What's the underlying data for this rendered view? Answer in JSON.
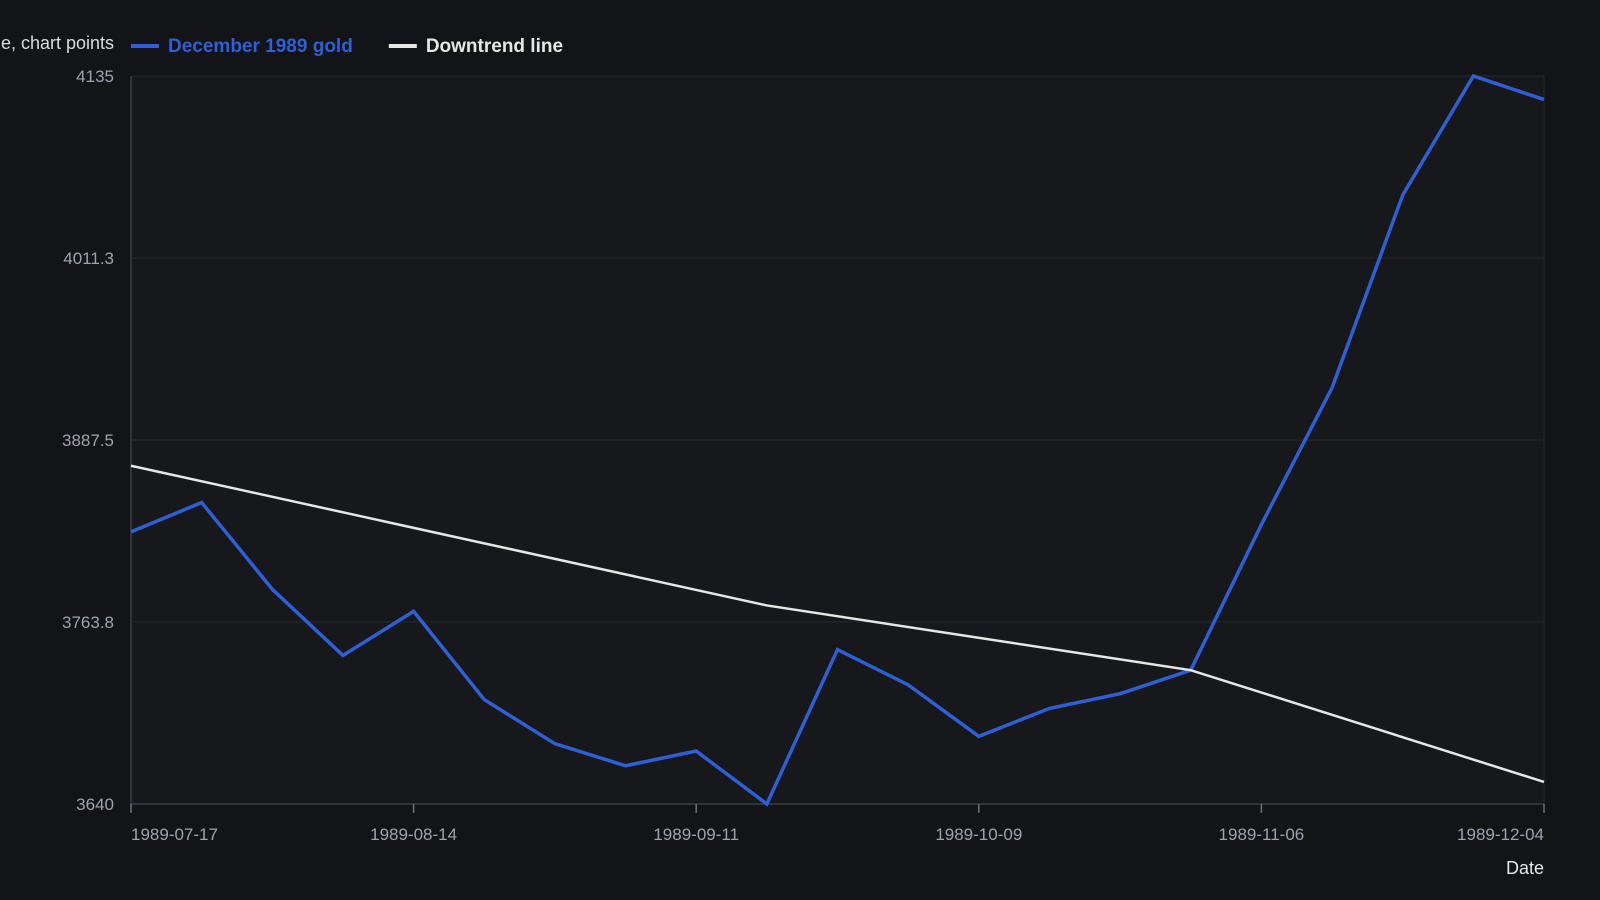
{
  "chart_data": {
    "type": "line",
    "title": "",
    "ylabel": "e, chart points",
    "xlabel": "Date",
    "x_ticks": [
      "1989-07-17",
      "1989-08-14",
      "1989-09-11",
      "1989-10-09",
      "1989-11-06",
      "1989-12-04"
    ],
    "y_ticks": [
      "3640",
      "3763.8",
      "3887.5",
      "4011.3",
      "4135"
    ],
    "ylim": [
      3640,
      4135
    ],
    "xlim": [
      "1989-07-17",
      "1989-12-04"
    ],
    "grid": true,
    "legend_position": "top-left",
    "x": [
      "1989-07-17",
      "1989-07-24",
      "1989-07-31",
      "1989-08-07",
      "1989-08-14",
      "1989-08-21",
      "1989-08-28",
      "1989-09-04",
      "1989-09-11",
      "1989-09-18",
      "1989-09-25",
      "1989-10-02",
      "1989-10-09",
      "1989-10-16",
      "1989-10-23",
      "1989-10-30",
      "1989-11-06",
      "1989-11-13",
      "1989-11-20",
      "1989-11-27",
      "1989-12-04"
    ],
    "series": [
      {
        "name": "December 1989 gold",
        "color": "#2f5fd6",
        "values": [
          3825,
          3845,
          3786,
          3741,
          3771,
          3711,
          3681,
          3666,
          3676,
          3640,
          3745,
          3721,
          3686,
          3705,
          3715,
          3731,
          3830,
          3923,
          4054,
          4135,
          4119
        ]
      },
      {
        "name": "Downtrend line",
        "color": "#e6e6e6",
        "points": [
          {
            "x": "1989-07-17",
            "y": 3870
          },
          {
            "x": "1989-09-18",
            "y": 3775
          },
          {
            "x": "1989-10-30",
            "y": 3731
          },
          {
            "x": "1989-12-04",
            "y": 3655
          }
        ]
      }
    ]
  }
}
